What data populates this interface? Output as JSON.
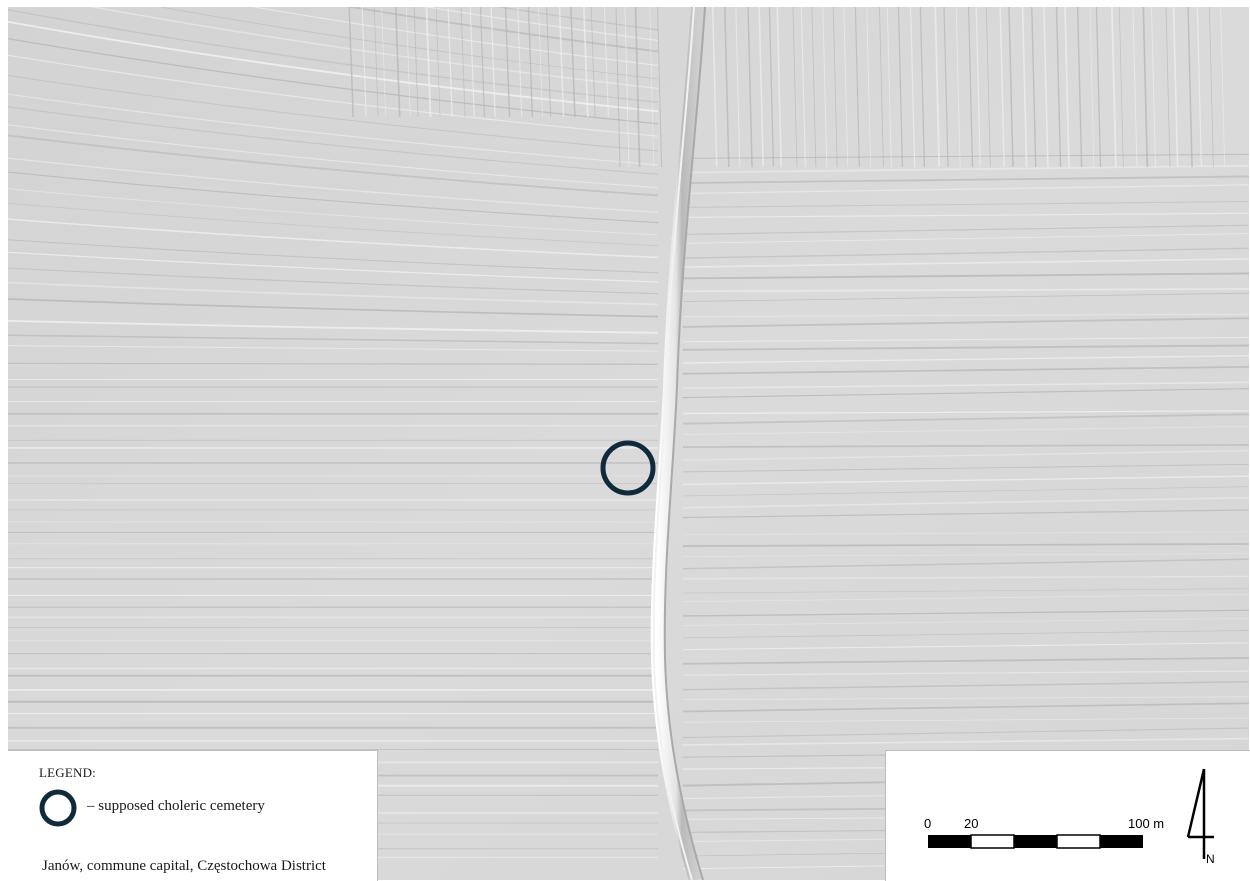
{
  "legend": {
    "title": "LEGEND:",
    "symbol_color": "#0f2a3a",
    "symbol_icon": "circle-outline-icon",
    "item_label": "–  supposed choleric cemetery",
    "location": "Janów, commune capital, Częstochowa District"
  },
  "scale": {
    "labels": [
      "0",
      "20",
      "100 m"
    ],
    "segments": 5
  },
  "north_arrow": {
    "label": "N",
    "icon": "north-arrow-icon"
  },
  "map": {
    "background": "#d7d7d7",
    "marker_color": "#0f2a3a"
  }
}
